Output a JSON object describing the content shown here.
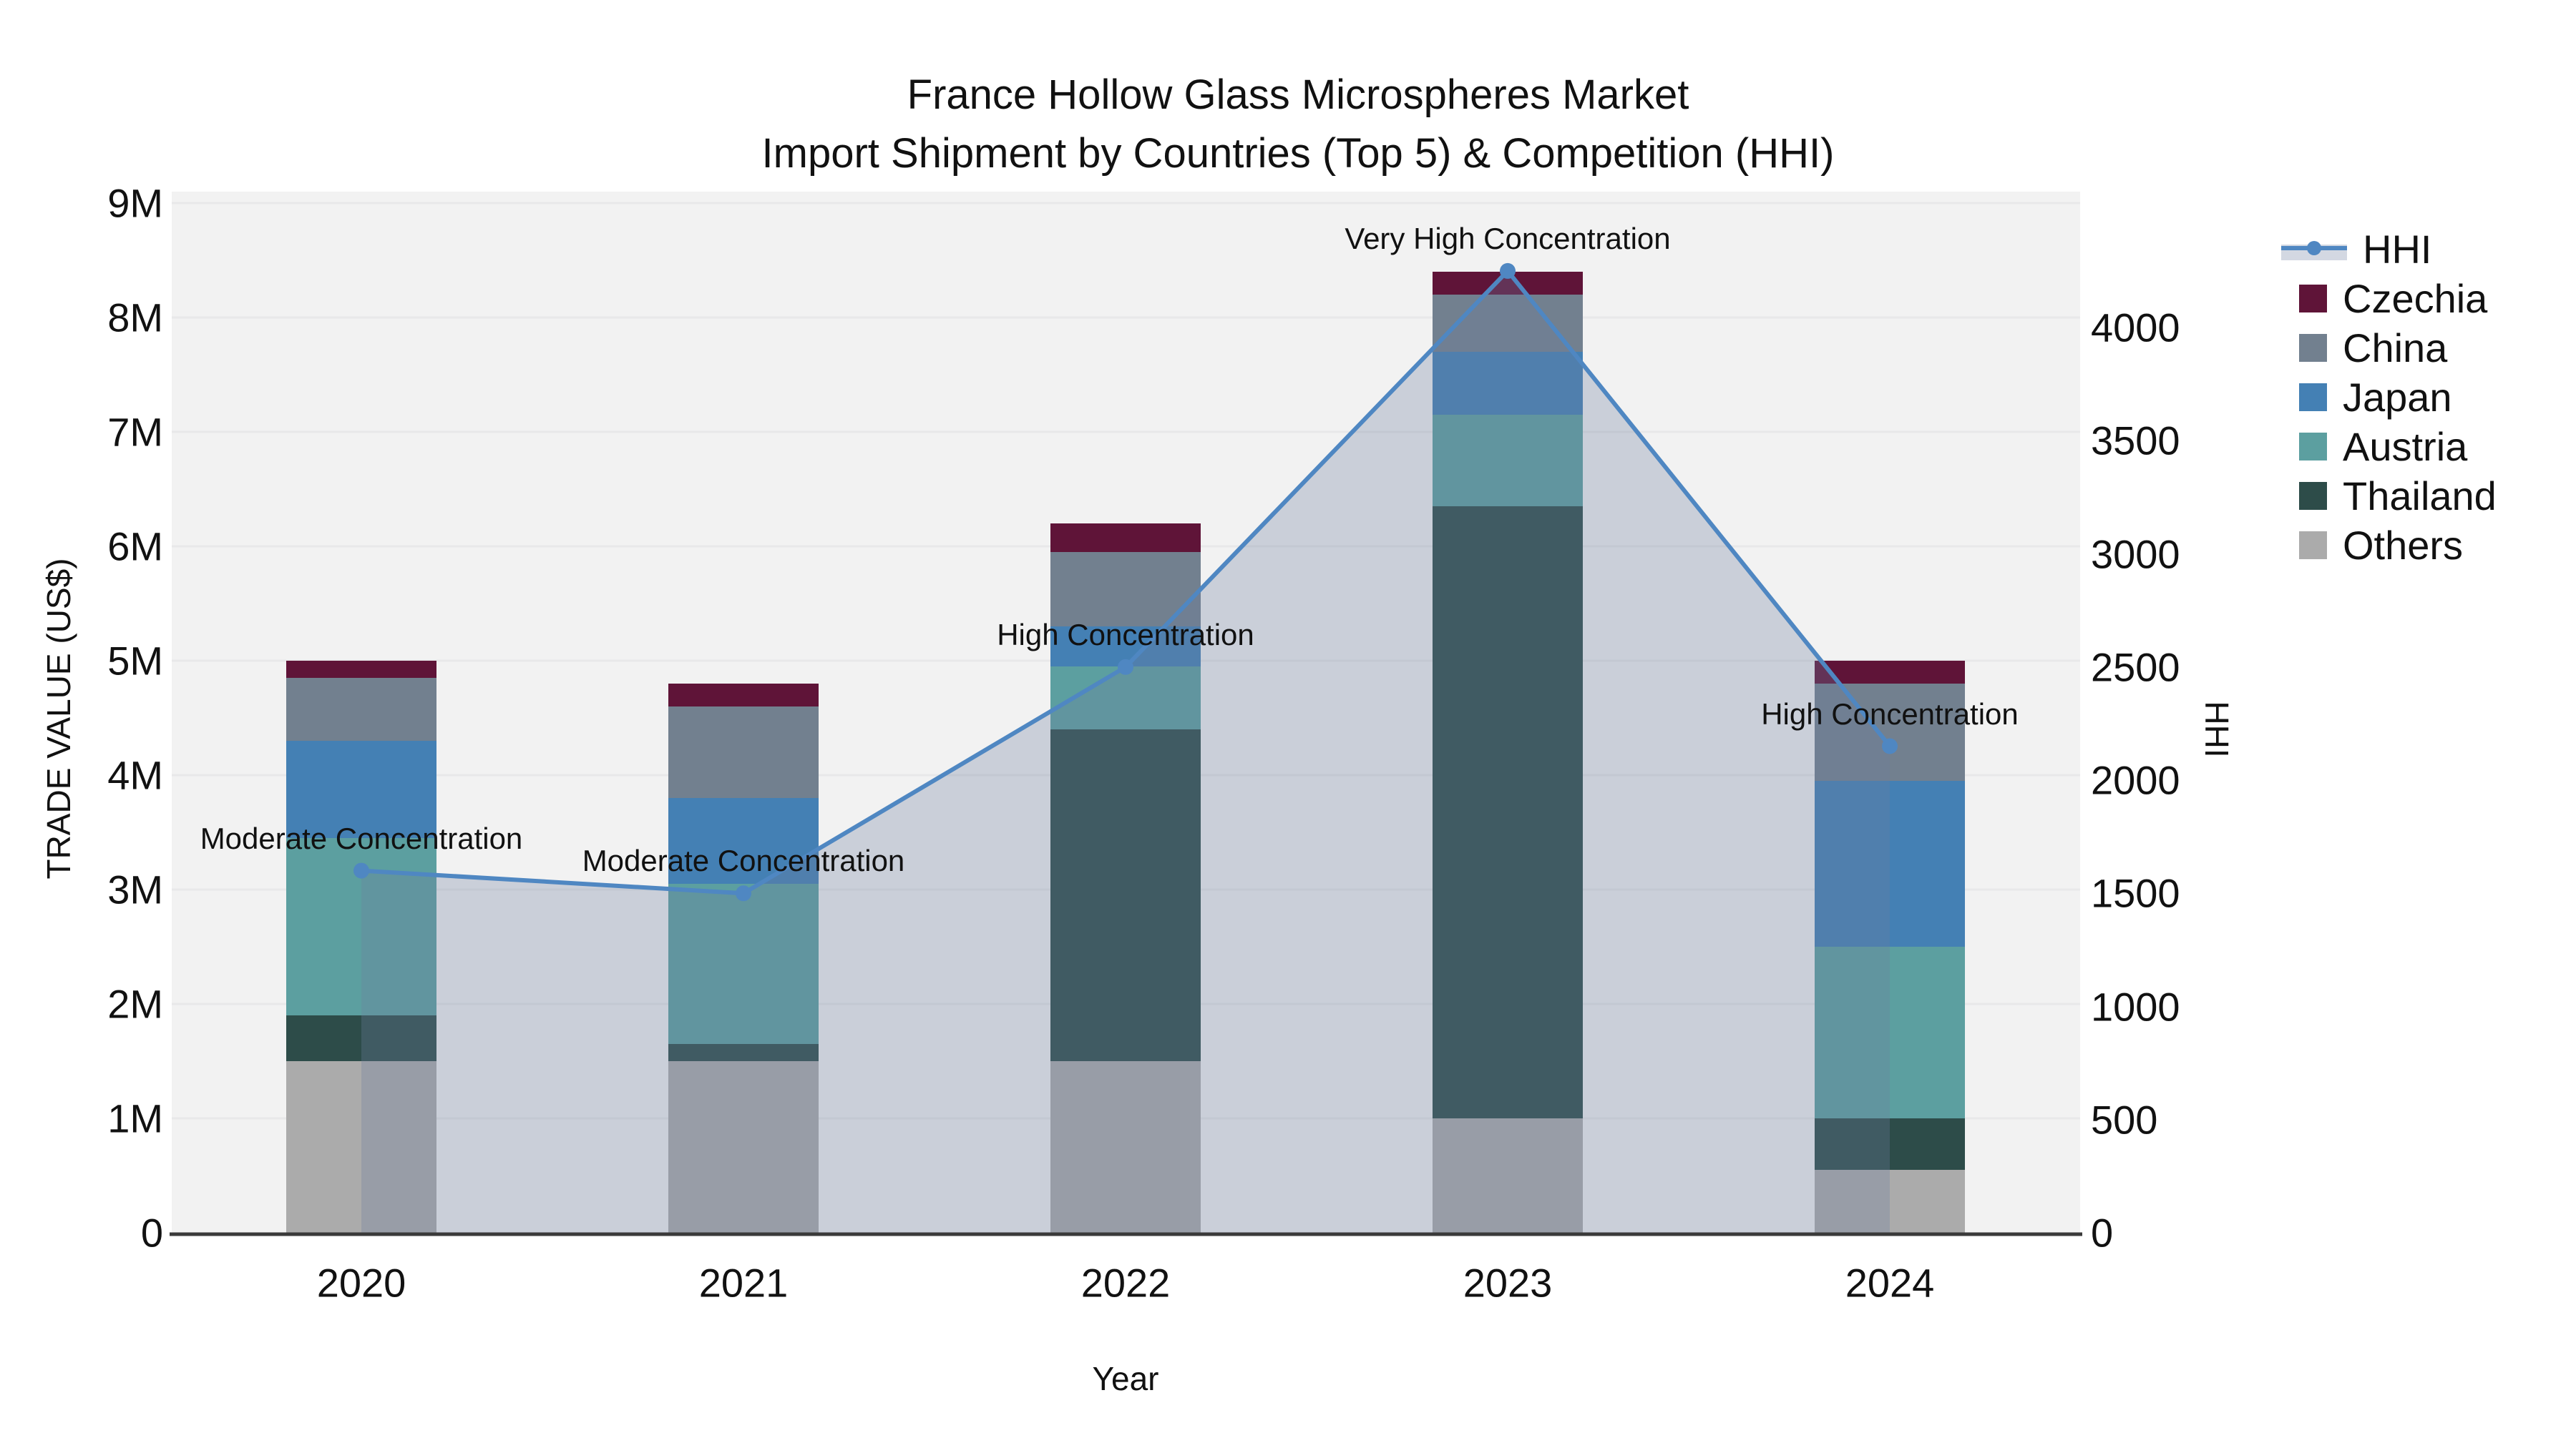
{
  "title": {
    "line1": "France Hollow Glass Microspheres Market",
    "line2": "Import Shipment by Countries (Top 5) & Competition (HHI)"
  },
  "axes": {
    "x_title": "Year",
    "y_left_title": "TRADE VALUE (US$)",
    "y_right_title": "HHI",
    "y_left_ticks": [
      "0",
      "1M",
      "2M",
      "3M",
      "4M",
      "5M",
      "6M",
      "7M",
      "8M",
      "9M"
    ],
    "y_right_ticks": [
      "0",
      "500",
      "1000",
      "1500",
      "2000",
      "2500",
      "3000",
      "3500",
      "4000"
    ]
  },
  "chart_data": {
    "type": "stacked-bar+line",
    "title": "France Hollow Glass Microspheres Market — Import Shipment by Countries (Top 5) & Competition (HHI)",
    "xlabel": "Year",
    "ylabel_left": "TRADE VALUE (US$)",
    "ylabel_right": "HHI",
    "categories": [
      "2020",
      "2021",
      "2022",
      "2023",
      "2024"
    ],
    "bar_value_unit": "million US$",
    "series": [
      {
        "name": "Others",
        "color": "#ababab",
        "values": [
          1.5,
          1.5,
          1.5,
          1.0,
          0.55
        ]
      },
      {
        "name": "Thailand",
        "color": "#2d4c49",
        "values": [
          0.4,
          0.15,
          2.9,
          5.35,
          0.45
        ]
      },
      {
        "name": "Austria",
        "color": "#5c9fa0",
        "values": [
          1.55,
          1.4,
          0.55,
          0.8,
          1.5
        ]
      },
      {
        "name": "Japan",
        "color": "#4480b4",
        "values": [
          0.85,
          0.75,
          0.35,
          0.55,
          1.45
        ]
      },
      {
        "name": "China",
        "color": "#72808f",
        "values": [
          0.55,
          0.8,
          0.65,
          0.5,
          0.85
        ]
      },
      {
        "name": "Czechia",
        "color": "#5f1438",
        "values": [
          0.15,
          0.2,
          0.25,
          0.2,
          0.2
        ]
      }
    ],
    "bar_totals_M": [
      5.0,
      4.8,
      6.2,
      8.4,
      5.0
    ],
    "line_series": {
      "name": "HHI",
      "values": [
        1600,
        1500,
        2500,
        4250,
        2150
      ],
      "color": "#4f87c2",
      "area_color": "rgba(110,127,158,0.30)"
    },
    "annotations": [
      {
        "year": "2020",
        "text": "Moderate Concentration"
      },
      {
        "year": "2021",
        "text": "Moderate Concentration"
      },
      {
        "year": "2022",
        "text": "High Concentration"
      },
      {
        "year": "2023",
        "text": "Very High Concentration"
      },
      {
        "year": "2024",
        "text": "High Concentration"
      }
    ],
    "axis_ranges": {
      "left_max": "9M",
      "right_max_tick": 4000
    },
    "grid": true,
    "legend_position": "right"
  },
  "legend": {
    "items": [
      {
        "label": "HHI",
        "type": "line",
        "color": "#4f87c2"
      },
      {
        "label": "Czechia",
        "type": "patch",
        "color": "#5f1438"
      },
      {
        "label": "China",
        "type": "patch",
        "color": "#72808f"
      },
      {
        "label": "Japan",
        "type": "patch",
        "color": "#4480b4"
      },
      {
        "label": "Austria",
        "type": "patch",
        "color": "#5c9fa0"
      },
      {
        "label": "Thailand",
        "type": "patch",
        "color": "#2d4c49"
      },
      {
        "label": "Others",
        "type": "patch",
        "color": "#ababab"
      }
    ]
  },
  "colors": {
    "plot_bg": "#f2f2f2",
    "grid": "#e8e8e9",
    "axis_line": "#3a3a3a",
    "text": "#111111"
  }
}
